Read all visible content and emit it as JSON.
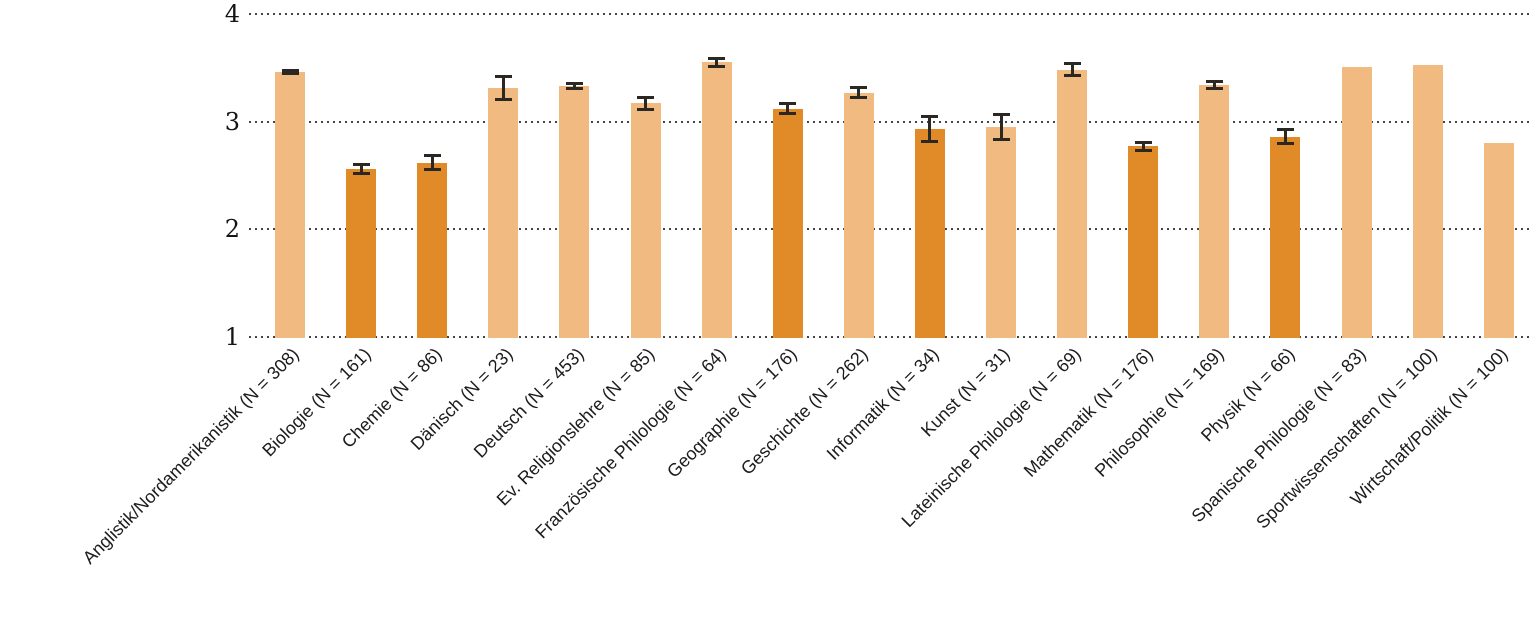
{
  "chart_data": {
    "type": "bar",
    "title": "",
    "xlabel": "",
    "ylabel": "",
    "ylim": [
      1,
      4
    ],
    "yticks": [
      "1",
      "2",
      "3",
      "4"
    ],
    "grid": "horizontal-dotted",
    "legend_position": "none",
    "error_bars": true,
    "colors": {
      "bar_light": "#F1BA80",
      "bar_dark": "#E08A28",
      "error_bar": "#2B2824",
      "gridline": "#454545"
    },
    "items": [
      {
        "label": "Anglistik/Nordamerikanistik (N = 308)",
        "n": 308,
        "value": 3.46,
        "error": 0.03,
        "shade": "light"
      },
      {
        "label": "Biologie (N = 161)",
        "n": 161,
        "value": 2.56,
        "error": 0.06,
        "shade": "dark"
      },
      {
        "label": "Chemie (N = 86)",
        "n": 86,
        "value": 2.62,
        "error": 0.08,
        "shade": "dark"
      },
      {
        "label": "Dänisch (N = 23)",
        "n": 23,
        "value": 3.31,
        "error": 0.12,
        "shade": "light"
      },
      {
        "label": "Deutsch (N = 453)",
        "n": 453,
        "value": 3.33,
        "error": 0.04,
        "shade": "light"
      },
      {
        "label": "Ev. Religionslehre (N = 85)",
        "n": 85,
        "value": 3.17,
        "error": 0.07,
        "shade": "light"
      },
      {
        "label": "Französische Philologie (N = 64)",
        "n": 64,
        "value": 3.55,
        "error": 0.05,
        "shade": "light"
      },
      {
        "label": "Geographie (N = 176)",
        "n": 176,
        "value": 3.12,
        "error": 0.06,
        "shade": "dark"
      },
      {
        "label": "Geschichte (N = 262)",
        "n": 262,
        "value": 3.27,
        "error": 0.06,
        "shade": "light"
      },
      {
        "label": "Informatik (N = 34)",
        "n": 34,
        "value": 2.93,
        "error": 0.13,
        "shade": "dark"
      },
      {
        "label": "Kunst (N = 31)",
        "n": 31,
        "value": 2.95,
        "error": 0.13,
        "shade": "light"
      },
      {
        "label": "Lateinische Philologie (N = 69)",
        "n": 69,
        "value": 3.48,
        "error": 0.07,
        "shade": "light"
      },
      {
        "label": "Mathematik (N = 176)",
        "n": 176,
        "value": 2.77,
        "error": 0.05,
        "shade": "dark"
      },
      {
        "label": "Philosophie (N = 169)",
        "n": 169,
        "value": 3.34,
        "error": 0.05,
        "shade": "light"
      },
      {
        "label": "Physik (N = 66)",
        "n": 66,
        "value": 2.86,
        "error": 0.08,
        "shade": "dark"
      },
      {
        "label": "Spanische Philologie (N = 83)",
        "n": 83,
        "value": 3.51,
        "error": null,
        "shade": "light"
      },
      {
        "label": "Sportwissenschaften (N = 100)",
        "n": 100,
        "value": 3.53,
        "error": null,
        "shade": "light"
      },
      {
        "label": "Wirtschaft/Politik (N = 100)",
        "n": 100,
        "value": 2.8,
        "error": null,
        "shade": "light"
      }
    ]
  }
}
